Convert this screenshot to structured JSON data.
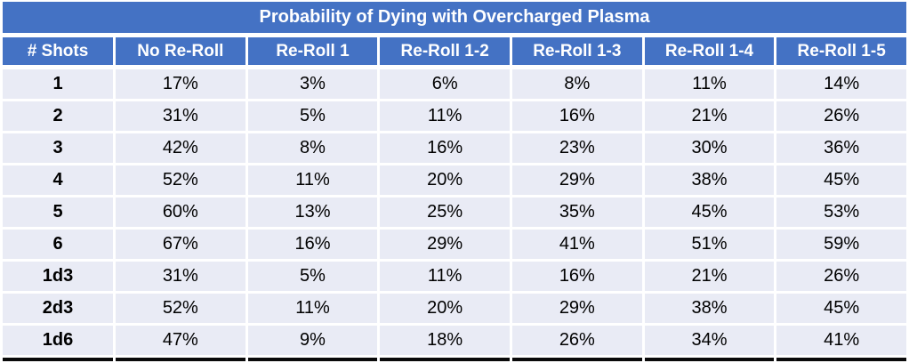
{
  "table": {
    "title": "Probability of Dying with Overcharged Plasma",
    "columns": [
      "# Shots",
      "No Re-Roll",
      "Re-Roll 1",
      "Re-Roll 1-2",
      "Re-Roll 1-3",
      "Re-Roll 1-4",
      "Re-Roll 1-5"
    ],
    "rows": [
      {
        "label": "1",
        "values": [
          "17%",
          "3%",
          "6%",
          "8%",
          "11%",
          "14%"
        ]
      },
      {
        "label": "2",
        "values": [
          "31%",
          "5%",
          "11%",
          "16%",
          "21%",
          "26%"
        ]
      },
      {
        "label": "3",
        "values": [
          "42%",
          "8%",
          "16%",
          "23%",
          "30%",
          "36%"
        ]
      },
      {
        "label": "4",
        "values": [
          "52%",
          "11%",
          "20%",
          "29%",
          "38%",
          "45%"
        ]
      },
      {
        "label": "5",
        "values": [
          "60%",
          "13%",
          "25%",
          "35%",
          "45%",
          "53%"
        ]
      },
      {
        "label": "6",
        "values": [
          "67%",
          "16%",
          "29%",
          "41%",
          "51%",
          "59%"
        ]
      },
      {
        "label": "1d3",
        "values": [
          "31%",
          "5%",
          "11%",
          "16%",
          "21%",
          "26%"
        ]
      },
      {
        "label": "2d3",
        "values": [
          "52%",
          "11%",
          "20%",
          "29%",
          "38%",
          "45%"
        ]
      },
      {
        "label": "1d6",
        "values": [
          "47%",
          "9%",
          "18%",
          "26%",
          "34%",
          "41%"
        ]
      }
    ],
    "colors": {
      "header_bg": "#4472C4",
      "header_text": "#FFFFFF",
      "row_bg": "#E9EBF5",
      "body_text": "#000000",
      "separator": "#FFFFFF",
      "bottom_border": "#0A0A0A"
    }
  },
  "chart_data": {
    "type": "table",
    "title": "Probability of Dying with Overcharged Plasma",
    "columns": [
      "# Shots",
      "No Re-Roll",
      "Re-Roll 1",
      "Re-Roll 1-2",
      "Re-Roll 1-3",
      "Re-Roll 1-4",
      "Re-Roll 1-5"
    ],
    "rows": [
      [
        "1",
        "17%",
        "3%",
        "6%",
        "8%",
        "11%",
        "14%"
      ],
      [
        "2",
        "31%",
        "5%",
        "11%",
        "16%",
        "21%",
        "26%"
      ],
      [
        "3",
        "42%",
        "8%",
        "16%",
        "23%",
        "30%",
        "36%"
      ],
      [
        "4",
        "52%",
        "11%",
        "20%",
        "29%",
        "38%",
        "45%"
      ],
      [
        "5",
        "60%",
        "13%",
        "25%",
        "35%",
        "45%",
        "53%"
      ],
      [
        "6",
        "67%",
        "16%",
        "29%",
        "41%",
        "51%",
        "59%"
      ],
      [
        "1d3",
        "31%",
        "5%",
        "11%",
        "16%",
        "21%",
        "26%"
      ],
      [
        "2d3",
        "52%",
        "11%",
        "20%",
        "29%",
        "38%",
        "45%"
      ],
      [
        "1d6",
        "47%",
        "9%",
        "18%",
        "26%",
        "34%",
        "41%"
      ]
    ]
  }
}
